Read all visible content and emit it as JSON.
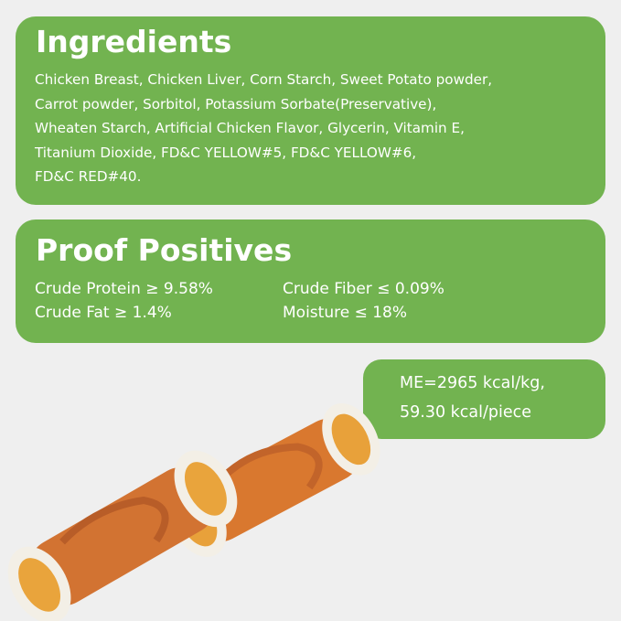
{
  "ingredients": {
    "title": "Ingredients",
    "lines": [
      "Chicken Breast, Chicken Liver, Corn Starch, Sweet Potato powder,",
      "Carrot powder, Sorbitol, Potassium Sorbate(Preservative),",
      "Wheaten Starch, Artificial Chicken Flavor,  Glycerin,  Vitamin E,",
      "Titanium Dioxide, FD&C YELLOW#5, FD&C YELLOW#6,",
      "FD&C RED#40."
    ]
  },
  "proof_positives": {
    "title": "Proof Positives",
    "items": [
      "Crude Protein ≥ 9.58%",
      "Crude Fat ≥ 1.4%",
      "Crude Fiber ≤ 0.09%",
      "Moisture ≤ 18%"
    ]
  },
  "energy": {
    "lines": [
      "ME=2965 kcal/kg,",
      "59.30 kcal/piece"
    ]
  },
  "colors": {
    "panel_green": "#72b350",
    "background": "#efefef"
  }
}
